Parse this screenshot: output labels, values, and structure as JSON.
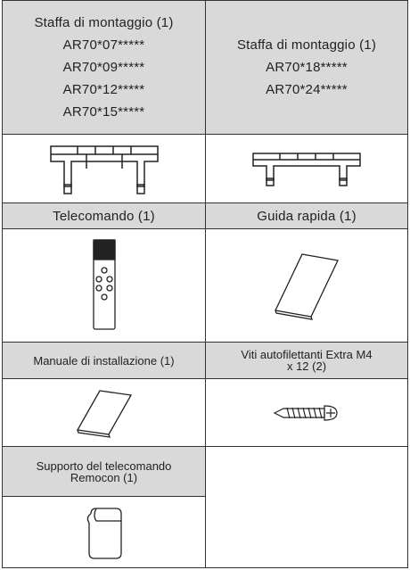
{
  "items": [
    {
      "label": [
        "Staffa di montaggio (1)",
        "AR70*07*****",
        "AR70*09*****",
        "AR70*12*****",
        "AR70*15*****"
      ]
    },
    {
      "label": [
        "Staffa di montaggio (1)",
        "AR70*18*****",
        "AR70*24*****"
      ]
    },
    {
      "label": [
        "Telecomando (1)"
      ]
    },
    {
      "label": [
        "Guida rapida (1)"
      ]
    },
    {
      "label": [
        "Manuale di installazione (1)"
      ]
    },
    {
      "label": [
        "Viti autofilettanti Extra M4",
        "x 12 (2)"
      ]
    },
    {
      "label": [
        "Supporto del telecomando",
        "Remocon (1)"
      ]
    }
  ]
}
